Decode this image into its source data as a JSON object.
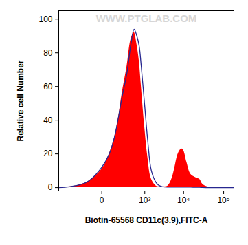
{
  "chart_data": {
    "type": "line",
    "x_label": "Biotin-65568 CD11c(3.9),FITC-A",
    "y_label": "Relative cell Number",
    "annotations": [
      "WWW.PTGLAB.COM"
    ],
    "x": [
      -1000,
      -500,
      -200,
      -100,
      0,
      50,
      100,
      150,
      200,
      300,
      400,
      500,
      600,
      700,
      800,
      1000,
      1200,
      1500,
      2000,
      2500,
      3000,
      4000,
      5000,
      6000,
      7000,
      8000,
      9000,
      10000,
      12000,
      15000,
      20000,
      25000,
      30000,
      40000,
      60000,
      100000,
      180000
    ],
    "series": [
      {
        "type": "area",
        "color": "#ff0000",
        "values": [
          0,
          0.5,
          2,
          4,
          11,
          20,
          30,
          42,
          55,
          72,
          88,
          92,
          85,
          75,
          60,
          35,
          18,
          5,
          1,
          0.5,
          0.5,
          1,
          5,
          12,
          19,
          22,
          23,
          22,
          15,
          8,
          6,
          5,
          2,
          0.5,
          0,
          0,
          0
        ]
      },
      {
        "type": "line",
        "color": "#27278f",
        "values": [
          0,
          0.5,
          2,
          4,
          12,
          20,
          30,
          42,
          53,
          68,
          85,
          94,
          90,
          84,
          72,
          48,
          28,
          10,
          3,
          1,
          0.5,
          0.3,
          0.3,
          0.3,
          0.3,
          0.3,
          0.3,
          0.3,
          0.3,
          0.3,
          0.2,
          0.2,
          0.1,
          0,
          0,
          0,
          0
        ]
      }
    ],
    "log": "x",
    "xlim": [
      -1000,
      180000
    ],
    "xticks": [
      0,
      {
        "value": 1000,
        "label": "10³"
      },
      {
        "value": 10000,
        "label": "10⁴"
      },
      {
        "value": 100000,
        "label": "10⁵"
      }
    ],
    "ylim": [
      -2,
      105
    ],
    "yticks": [
      0,
      20,
      40,
      60,
      80,
      100
    ],
    "grid": false
  }
}
